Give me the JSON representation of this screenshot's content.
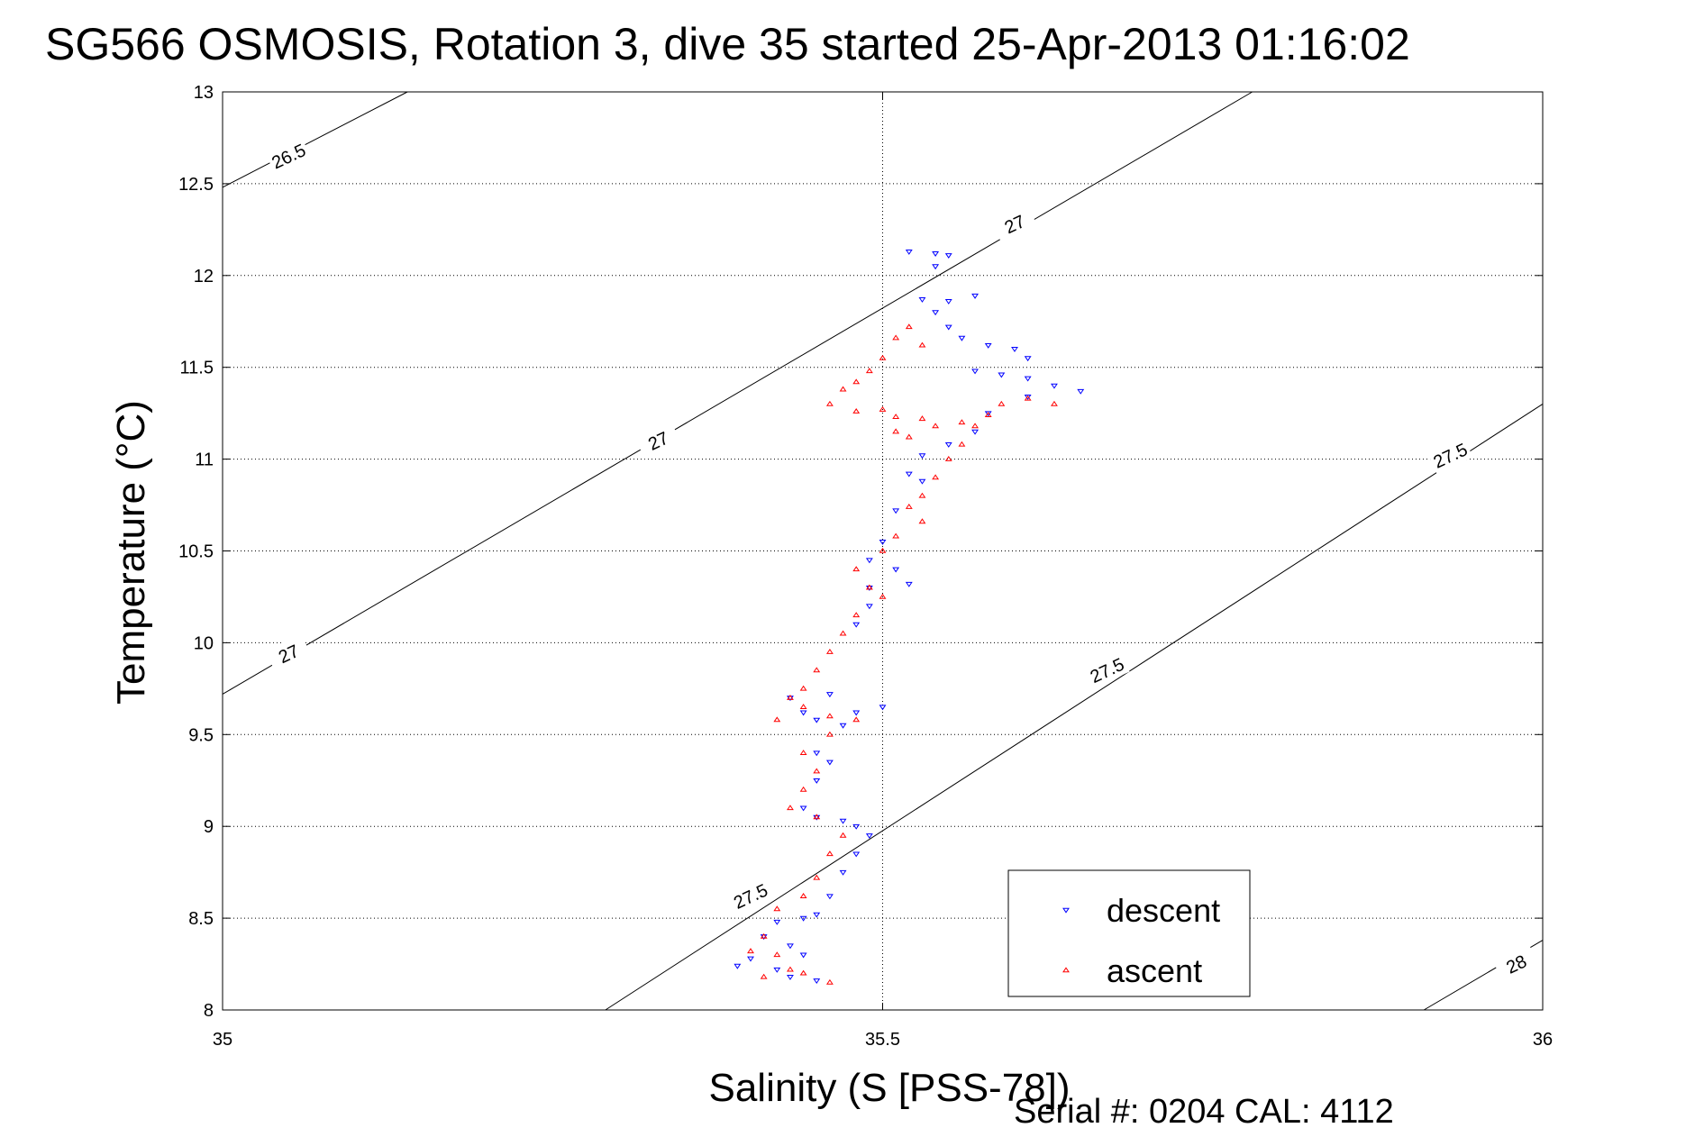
{
  "title": "SG566 OSMOSIS, Rotation 3, dive 35 started 25-Apr-2013 01:16:02",
  "footer": "Serial #: 0204  CAL: 4112",
  "chart_data": {
    "type": "scatter",
    "xlabel": "Salinity (S [PSS-78])",
    "ylabel": "Temperature (°C)",
    "xlim": [
      35,
      36
    ],
    "ylim": [
      8,
      13
    ],
    "xticks": [
      "35",
      "35.5",
      "36"
    ],
    "yticks": [
      "8",
      "8.5",
      "9",
      "9.5",
      "10",
      "10.5",
      "11",
      "11.5",
      "12",
      "12.5",
      "13"
    ],
    "grid": "dotted",
    "legend_position": "lower-right",
    "colors": {
      "descent": "#0000ff",
      "ascent": "#ff0000",
      "contour": "#000000"
    },
    "series": [
      {
        "name": "descent",
        "marker": "triangle-down",
        "points": [
          [
            35.52,
            12.13
          ],
          [
            35.54,
            12.12
          ],
          [
            35.55,
            12.11
          ],
          [
            35.54,
            12.05
          ],
          [
            35.53,
            11.87
          ],
          [
            35.55,
            11.86
          ],
          [
            35.57,
            11.89
          ],
          [
            35.54,
            11.8
          ],
          [
            35.55,
            11.72
          ],
          [
            35.56,
            11.66
          ],
          [
            35.58,
            11.62
          ],
          [
            35.6,
            11.6
          ],
          [
            35.61,
            11.55
          ],
          [
            35.57,
            11.48
          ],
          [
            35.59,
            11.46
          ],
          [
            35.61,
            11.44
          ],
          [
            35.63,
            11.4
          ],
          [
            35.65,
            11.37
          ],
          [
            35.61,
            11.34
          ],
          [
            35.58,
            11.25
          ],
          [
            35.57,
            11.15
          ],
          [
            35.55,
            11.08
          ],
          [
            35.53,
            11.02
          ],
          [
            35.52,
            10.92
          ],
          [
            35.53,
            10.88
          ],
          [
            35.51,
            10.72
          ],
          [
            35.5,
            10.55
          ],
          [
            35.49,
            10.45
          ],
          [
            35.51,
            10.4
          ],
          [
            35.49,
            10.3
          ],
          [
            35.52,
            10.32
          ],
          [
            35.49,
            10.2
          ],
          [
            35.48,
            10.1
          ],
          [
            35.46,
            9.72
          ],
          [
            35.43,
            9.7
          ],
          [
            35.44,
            9.62
          ],
          [
            35.45,
            9.58
          ],
          [
            35.48,
            9.62
          ],
          [
            35.5,
            9.65
          ],
          [
            35.47,
            9.55
          ],
          [
            35.45,
            9.4
          ],
          [
            35.46,
            9.35
          ],
          [
            35.45,
            9.25
          ],
          [
            35.44,
            9.1
          ],
          [
            35.45,
            9.05
          ],
          [
            35.47,
            9.03
          ],
          [
            35.48,
            9.0
          ],
          [
            35.49,
            8.95
          ],
          [
            35.48,
            8.85
          ],
          [
            35.47,
            8.75
          ],
          [
            35.46,
            8.62
          ],
          [
            35.45,
            8.52
          ],
          [
            35.44,
            8.5
          ],
          [
            35.42,
            8.48
          ],
          [
            35.41,
            8.4
          ],
          [
            35.43,
            8.35
          ],
          [
            35.44,
            8.3
          ],
          [
            35.42,
            8.22
          ],
          [
            35.43,
            8.18
          ],
          [
            35.45,
            8.16
          ],
          [
            35.4,
            8.28
          ],
          [
            35.39,
            8.24
          ]
        ]
      },
      {
        "name": "ascent",
        "marker": "triangle-up",
        "points": [
          [
            35.52,
            11.72
          ],
          [
            35.51,
            11.66
          ],
          [
            35.53,
            11.62
          ],
          [
            35.5,
            11.55
          ],
          [
            35.49,
            11.48
          ],
          [
            35.48,
            11.42
          ],
          [
            35.47,
            11.38
          ],
          [
            35.46,
            11.3
          ],
          [
            35.48,
            11.26
          ],
          [
            35.5,
            11.27
          ],
          [
            35.51,
            11.23
          ],
          [
            35.53,
            11.22
          ],
          [
            35.51,
            11.15
          ],
          [
            35.52,
            11.12
          ],
          [
            35.54,
            11.18
          ],
          [
            35.56,
            11.2
          ],
          [
            35.59,
            11.3
          ],
          [
            35.61,
            11.33
          ],
          [
            35.63,
            11.3
          ],
          [
            35.58,
            11.24
          ],
          [
            35.57,
            11.18
          ],
          [
            35.56,
            11.08
          ],
          [
            35.55,
            11.0
          ],
          [
            35.54,
            10.9
          ],
          [
            35.53,
            10.8
          ],
          [
            35.52,
            10.74
          ],
          [
            35.53,
            10.66
          ],
          [
            35.51,
            10.58
          ],
          [
            35.5,
            10.5
          ],
          [
            35.48,
            10.4
          ],
          [
            35.49,
            10.3
          ],
          [
            35.5,
            10.25
          ],
          [
            35.48,
            10.15
          ],
          [
            35.47,
            10.05
          ],
          [
            35.46,
            9.95
          ],
          [
            35.45,
            9.85
          ],
          [
            35.44,
            9.75
          ],
          [
            35.43,
            9.7
          ],
          [
            35.44,
            9.65
          ],
          [
            35.46,
            9.6
          ],
          [
            35.48,
            9.58
          ],
          [
            35.46,
            9.5
          ],
          [
            35.44,
            9.4
          ],
          [
            35.45,
            9.3
          ],
          [
            35.44,
            9.2
          ],
          [
            35.43,
            9.1
          ],
          [
            35.45,
            9.05
          ],
          [
            35.47,
            8.95
          ],
          [
            35.46,
            8.85
          ],
          [
            35.45,
            8.72
          ],
          [
            35.44,
            8.62
          ],
          [
            35.42,
            8.55
          ],
          [
            35.41,
            8.4
          ],
          [
            35.42,
            8.3
          ],
          [
            35.43,
            8.22
          ],
          [
            35.41,
            8.18
          ],
          [
            35.44,
            8.2
          ],
          [
            35.46,
            8.15
          ],
          [
            35.42,
            9.58
          ],
          [
            35.4,
            8.32
          ]
        ]
      }
    ],
    "contours": [
      {
        "label": "26.5",
        "points": [
          [
            35,
            12.48
          ],
          [
            35.14,
            13.0
          ]
        ]
      },
      {
        "label": "27",
        "points": [
          [
            35,
            9.72
          ],
          [
            35.78,
            13.0
          ]
        ]
      },
      {
        "label": "27.5",
        "points": [
          [
            35.29,
            8.0
          ],
          [
            36,
            11.3
          ]
        ]
      },
      {
        "label": "28",
        "points": [
          [
            35.91,
            8.0
          ],
          [
            36,
            8.38
          ]
        ]
      }
    ],
    "contour_labels": [
      {
        "text": "26.5",
        "at": [
          35.05,
          12.65
        ],
        "angle": -25
      },
      {
        "text": "27",
        "at": [
          35.6,
          12.28
        ],
        "angle": -25
      },
      {
        "text": "27",
        "at": [
          35.33,
          11.1
        ],
        "angle": -25
      },
      {
        "text": "27",
        "at": [
          35.05,
          9.94
        ],
        "angle": -25
      },
      {
        "text": "27.5",
        "at": [
          35.93,
          11.02
        ],
        "angle": -25
      },
      {
        "text": "27.5",
        "at": [
          35.67,
          9.85
        ],
        "angle": -25
      },
      {
        "text": "27.5",
        "at": [
          35.4,
          8.62
        ],
        "angle": -25
      },
      {
        "text": "28",
        "at": [
          35.98,
          8.25
        ],
        "angle": -25
      }
    ]
  }
}
